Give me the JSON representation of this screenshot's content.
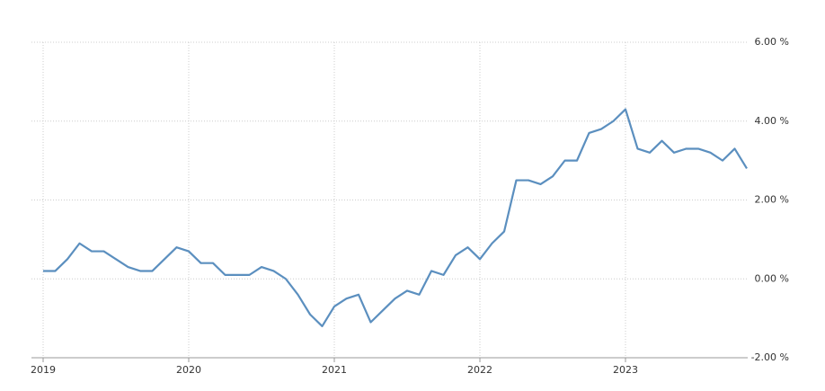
{
  "chart_data": {
    "type": "line",
    "categories": [
      "2019",
      null,
      null,
      null,
      null,
      null,
      null,
      null,
      null,
      null,
      null,
      null,
      "2020",
      null,
      null,
      null,
      null,
      null,
      null,
      null,
      null,
      null,
      null,
      null,
      "2021",
      null,
      null,
      null,
      null,
      null,
      null,
      null,
      null,
      null,
      null,
      null,
      "2022",
      null,
      null,
      null,
      null,
      null,
      null,
      null,
      null,
      null,
      null,
      null,
      "2023",
      null,
      null,
      null,
      null,
      null,
      null,
      null,
      null,
      null,
      null
    ],
    "series": [
      {
        "color": "#5b8fbf",
        "values": [
          0.2,
          0.2,
          0.5,
          0.9,
          0.7,
          0.7,
          0.5,
          0.3,
          0.2,
          0.2,
          0.5,
          0.8,
          0.7,
          0.4,
          0.4,
          0.1,
          0.1,
          0.1,
          0.3,
          0.2,
          0.0,
          -0.4,
          -0.9,
          -1.2,
          -0.7,
          -0.5,
          -0.4,
          -1.1,
          -0.8,
          -0.5,
          -0.3,
          -0.4,
          0.2,
          0.1,
          0.6,
          0.8,
          0.5,
          0.9,
          1.2,
          2.5,
          2.5,
          2.4,
          2.6,
          3.0,
          3.0,
          3.7,
          3.8,
          4.0,
          4.3,
          3.3,
          3.2,
          3.5,
          3.2,
          3.3,
          3.3,
          3.2,
          3.0,
          3.3,
          2.8
        ]
      }
    ],
    "ylim": [
      -2,
      6
    ],
    "yticks": [
      {
        "value": -2,
        "label": "-2.00 %"
      },
      {
        "value": 0,
        "label": "0.00 %"
      },
      {
        "value": 2,
        "label": "2.00 %"
      },
      {
        "value": 4,
        "label": "4.00 %"
      },
      {
        "value": 6,
        "label": "6.00 %"
      }
    ],
    "grid": true
  }
}
